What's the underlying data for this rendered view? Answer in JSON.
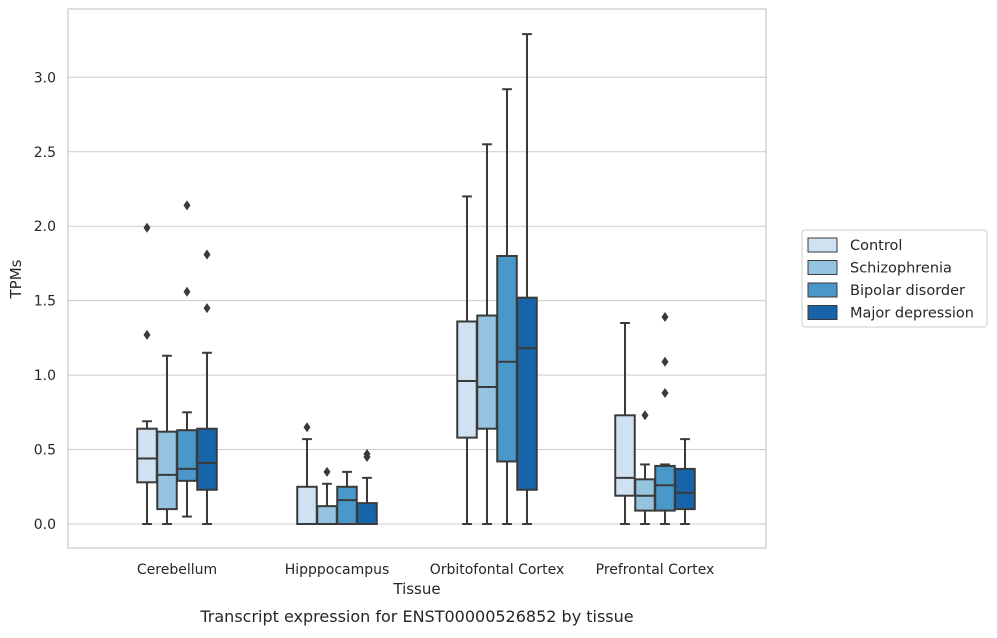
{
  "chart_data": {
    "type": "box",
    "xlabel": "Tissue",
    "ylabel": "TPMs",
    "caption": "Transcript expression for ENST00000526852 by tissue",
    "ylim": [
      -0.16,
      3.46
    ],
    "yticks": [
      0.0,
      0.5,
      1.0,
      1.5,
      2.0,
      2.5,
      3.0
    ],
    "ytick_labels": [
      "0.0",
      "0.5",
      "1.0",
      "1.5",
      "2.0",
      "2.5",
      "3.0"
    ],
    "grid": "horizontal",
    "legend_position": "right",
    "categories": [
      "Cerebellum",
      "Hipppocampus",
      "Orbitofontal Cortex",
      "Prefrontal Cortex"
    ],
    "series": [
      {
        "name": "Control",
        "color": "#d0e1f2",
        "boxes": [
          {
            "low": 0.0,
            "q1": 0.28,
            "median": 0.44,
            "q3": 0.64,
            "high": 0.69,
            "outliers": [
              1.27,
              1.99
            ]
          },
          {
            "low": 0.0,
            "q1": 0.0,
            "median": 0.0,
            "q3": 0.25,
            "high": 0.57,
            "outliers": [
              0.65
            ]
          },
          {
            "low": 0.0,
            "q1": 0.58,
            "median": 0.96,
            "q3": 1.36,
            "high": 2.2,
            "outliers": []
          },
          {
            "low": 0.0,
            "q1": 0.19,
            "median": 0.31,
            "q3": 0.73,
            "high": 1.35,
            "outliers": []
          }
        ]
      },
      {
        "name": "Schizophrenia",
        "color": "#94c4df",
        "boxes": [
          {
            "low": 0.0,
            "q1": 0.1,
            "median": 0.33,
            "q3": 0.62,
            "high": 1.13,
            "outliers": []
          },
          {
            "low": 0.0,
            "q1": 0.0,
            "median": 0.0,
            "q3": 0.12,
            "high": 0.27,
            "outliers": [
              0.35
            ]
          },
          {
            "low": 0.0,
            "q1": 0.64,
            "median": 0.92,
            "q3": 1.4,
            "high": 2.55,
            "outliers": []
          },
          {
            "low": 0.0,
            "q1": 0.09,
            "median": 0.19,
            "q3": 0.3,
            "high": 0.4,
            "outliers": [
              0.73
            ]
          }
        ]
      },
      {
        "name": "Bipolar disorder",
        "color": "#4a98c9",
        "boxes": [
          {
            "low": 0.05,
            "q1": 0.29,
            "median": 0.37,
            "q3": 0.63,
            "high": 0.75,
            "outliers": [
              1.56,
              2.14
            ]
          },
          {
            "low": 0.0,
            "q1": 0.0,
            "median": 0.16,
            "q3": 0.25,
            "high": 0.35,
            "outliers": []
          },
          {
            "low": 0.0,
            "q1": 0.42,
            "median": 1.09,
            "q3": 1.8,
            "high": 2.92,
            "outliers": []
          },
          {
            "low": 0.0,
            "q1": 0.09,
            "median": 0.26,
            "q3": 0.39,
            "high": 0.4,
            "outliers": [
              0.88,
              1.09,
              1.39
            ]
          }
        ]
      },
      {
        "name": "Major depression",
        "color": "#1764ab",
        "boxes": [
          {
            "low": 0.0,
            "q1": 0.23,
            "median": 0.41,
            "q3": 0.64,
            "high": 1.15,
            "outliers": [
              1.45,
              1.81
            ]
          },
          {
            "low": 0.0,
            "q1": 0.0,
            "median": 0.0,
            "q3": 0.14,
            "high": 0.31,
            "outliers": [
              0.45,
              0.47
            ]
          },
          {
            "low": 0.0,
            "q1": 0.23,
            "median": 1.18,
            "q3": 1.52,
            "high": 3.29,
            "outliers": []
          },
          {
            "low": 0.0,
            "q1": 0.1,
            "median": 0.21,
            "q3": 0.37,
            "high": 0.57,
            "outliers": []
          }
        ]
      }
    ]
  }
}
